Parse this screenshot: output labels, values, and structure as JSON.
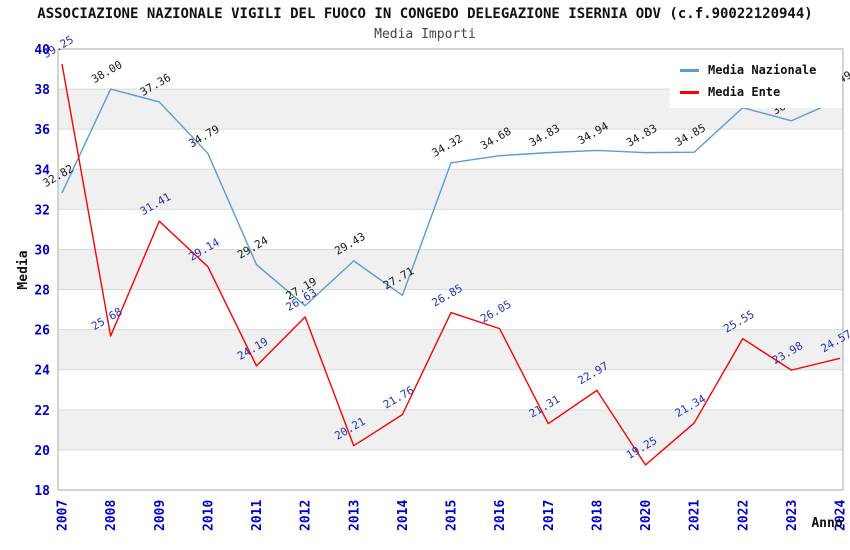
{
  "title": "ASSOCIAZIONE NAZIONALE VIGILI DEL FUOCO IN CONGEDO DELEGAZIONE ISERNIA ODV (c.f.90022120944)",
  "subtitle": "Media Importi",
  "chart_data": {
    "type": "line",
    "title": "ASSOCIAZIONE NAZIONALE VIGILI DEL FUOCO IN CONGEDO DELEGAZIONE ISERNIA ODV (c.f.90022120944)",
    "subtitle": "Media Importi",
    "xlabel": "Anno",
    "ylabel": "Media",
    "ylim": [
      18,
      40
    ],
    "ytick_step": 2,
    "grid": "horizontal-bands",
    "legend_position": "top-right",
    "categories": [
      "2007",
      "2008",
      "2009",
      "2010",
      "2011",
      "2012",
      "2013",
      "2014",
      "2015",
      "2016",
      "2017",
      "2018",
      "2020",
      "2021",
      "2022",
      "2023",
      "2024"
    ],
    "series": [
      {
        "name": "Media Nazionale",
        "color": "#5B9BD5",
        "label_color": "#1a1a1a",
        "values": [
          32.82,
          38.0,
          37.36,
          34.79,
          29.24,
          27.19,
          29.43,
          27.71,
          34.32,
          34.68,
          34.83,
          34.94,
          34.83,
          34.85,
          37.07,
          36.42,
          37.49
        ]
      },
      {
        "name": "Media Ente",
        "color": "#FF0000",
        "label_color": "#2233BB",
        "values": [
          39.25,
          25.68,
          31.41,
          29.14,
          24.19,
          26.63,
          20.21,
          21.76,
          26.85,
          26.05,
          21.31,
          22.97,
          19.25,
          21.34,
          25.55,
          23.98,
          24.57
        ]
      }
    ],
    "colors": {
      "axis_tick": "#0000CC",
      "band": "#F0F0F0",
      "gridline": "#DADADA",
      "plot_border": "#AAAAAA",
      "axis_title": "#111111"
    }
  }
}
